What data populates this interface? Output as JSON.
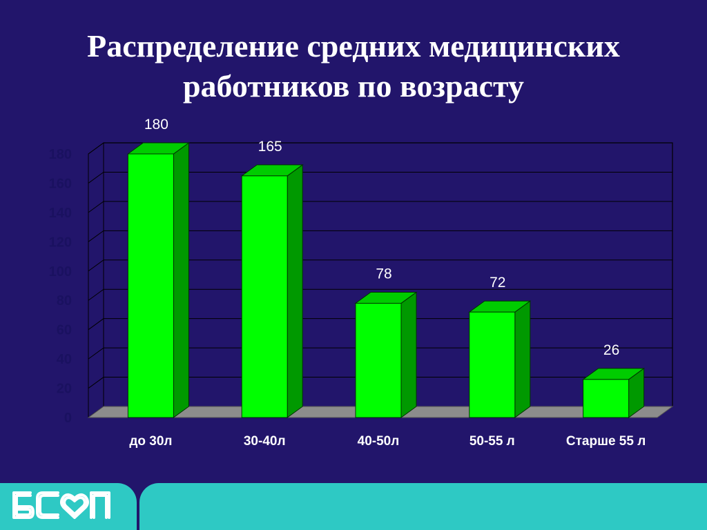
{
  "slide": {
    "title_line1": "Распределение средних медицинских",
    "title_line2": "работников по возрасту"
  },
  "chart_data": {
    "type": "bar",
    "title": "Распределение средних медицинских работников по возрасту",
    "categories": [
      "до 30л",
      "30-40л",
      "40-50л",
      "50-55 л",
      "Старше 55 л"
    ],
    "values": [
      180,
      165,
      78,
      72,
      26
    ],
    "data_labels": [
      "180",
      "165",
      "78",
      "72",
      "26"
    ],
    "yticks": [
      "0",
      "20",
      "40",
      "60",
      "80",
      "100",
      "120",
      "140",
      "160",
      "180"
    ],
    "ylim": [
      0,
      180
    ],
    "grid": true,
    "legend": false,
    "colors": {
      "bar_front": "#00ff00",
      "bar_side": "#009900",
      "bar_top": "#00cc00",
      "floor": "#8c8c8c",
      "grid": "#000000",
      "ytick_text": "#1a1160",
      "label_text": "#ffffff"
    }
  },
  "footer": {
    "logo_icon": "bsop-logo",
    "color": "#2ec9c4"
  }
}
